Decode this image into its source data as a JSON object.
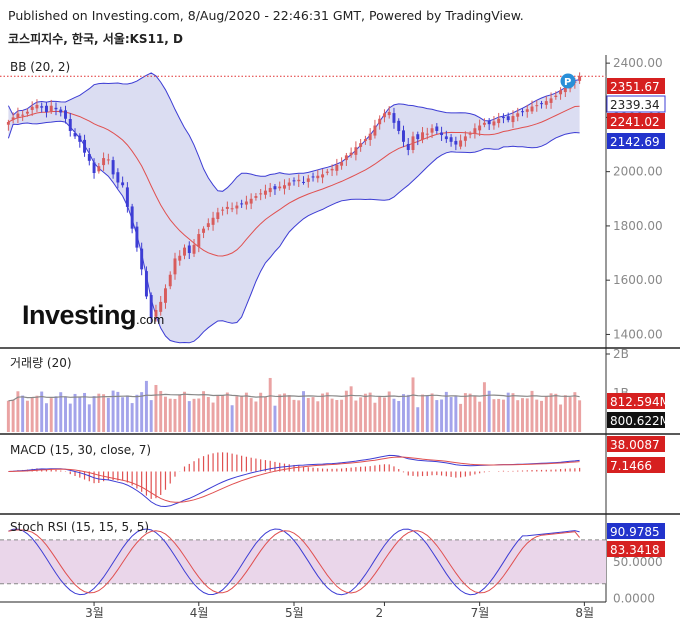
{
  "header": {
    "published": "Published on Investing.com, 8/Aug/2020 - 22:46:31 GMT, Powered by TradingView.",
    "symbol": "코스피지수, 한국, 서울:KS11, D"
  },
  "brand": {
    "main": "Investing",
    "suffix": ".com"
  },
  "colors": {
    "up": "#d85c5c",
    "down": "#3d3dd4",
    "bb_band": "#3d3dd4",
    "bb_mid": "#e05050",
    "bb_fill": "#cfd2ee",
    "vol_up": "#eaa3a3",
    "vol_down": "#a3a3ea",
    "vol_ma": "#888888",
    "macd": "#3d3dd4",
    "signal": "#e05050",
    "stoch_k": "#3d3dd4",
    "stoch_d": "#e05050",
    "stoch_fill": "#ead6ea",
    "price_line": "#e03030"
  },
  "chart_data": [
    {
      "type": "candlestick",
      "title": "BB (20, 2)",
      "ylim": [
        1350,
        2430
      ],
      "y_ticks": [
        1400,
        1600,
        1800,
        2000,
        2200,
        2400
      ],
      "y_tick_labels": [
        "1400.00",
        "1600.00",
        "1800.00",
        "2000.00",
        "2200.00",
        "2400.00"
      ],
      "x_tick_labels": [
        "3월",
        "4월",
        "5월",
        "2",
        "7월",
        "8월"
      ],
      "x_tick_index": [
        18,
        40,
        60,
        79,
        99,
        121
      ],
      "close": [
        2183,
        2200,
        2214,
        2210,
        2221,
        2239,
        2246,
        2236,
        2220,
        2243,
        2230,
        2218,
        2195,
        2150,
        2130,
        2110,
        2070,
        2040,
        1995,
        2020,
        2050,
        2045,
        1990,
        1960,
        1950,
        1870,
        1790,
        1720,
        1640,
        1540,
        1460,
        1490,
        1520,
        1570,
        1620,
        1680,
        1690,
        1720,
        1700,
        1730,
        1770,
        1790,
        1810,
        1830,
        1850,
        1860,
        1870,
        1865,
        1875,
        1880,
        1890,
        1900,
        1910,
        1920,
        1930,
        1940,
        1935,
        1945,
        1950,
        1960,
        1965,
        1970,
        1960,
        1975,
        1980,
        1985,
        1990,
        2000,
        2010,
        2025,
        2035,
        2060,
        2070,
        2090,
        2105,
        2120,
        2140,
        2170,
        2195,
        2215,
        2220,
        2180,
        2150,
        2110,
        2080,
        2130,
        2120,
        2145,
        2140,
        2160,
        2150,
        2135,
        2120,
        2110,
        2100,
        2115,
        2130,
        2140,
        2160,
        2170,
        2180,
        2175,
        2185,
        2195,
        2200,
        2190,
        2205,
        2215,
        2220,
        2230,
        2240,
        2245,
        2250,
        2260,
        2270,
        2280,
        2300,
        2310,
        2320,
        2333,
        2351.67
      ],
      "last_price": 2351.67,
      "bb_upper_last": 2339.34,
      "bb_mid_last": 2241.02,
      "bb_lower_last": 2142.69,
      "price_labels": [
        "2351.67",
        "2339.34",
        "2241.02",
        "2142.69"
      ]
    },
    {
      "type": "bar",
      "title": "거래량 (20)",
      "y_tick_labels": [
        "2B",
        "1B"
      ],
      "ylim": [
        0,
        2000
      ],
      "last_value_labels": [
        "812.594M",
        "800.622M"
      ]
    },
    {
      "type": "line",
      "title": "MACD (15, 30, close, 7)",
      "last_value_labels": [
        "38.0087",
        "7.1466"
      ]
    },
    {
      "type": "line",
      "title": "Stoch RSI (15, 15, 5, 5)",
      "ylim": [
        -5,
        110
      ],
      "bands": [
        20,
        80
      ],
      "y_tick_labels": [
        "50.0000",
        "0.0000"
      ],
      "last_value_labels": [
        "90.9785",
        "83.3418"
      ]
    }
  ]
}
